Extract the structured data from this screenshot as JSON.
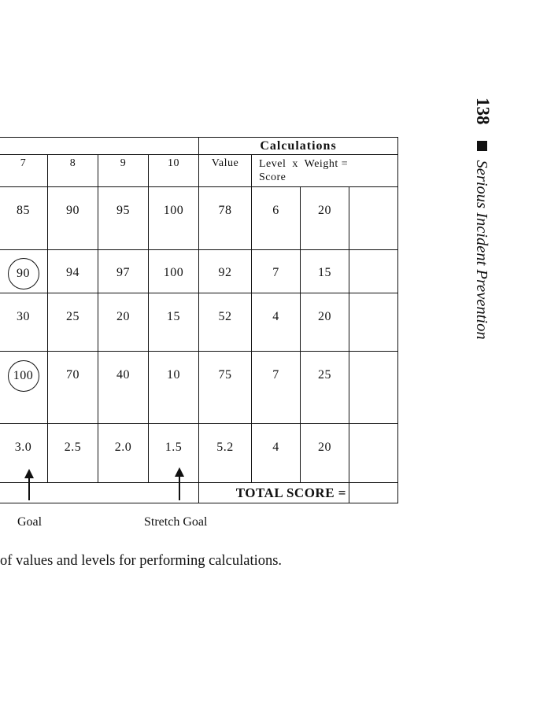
{
  "running_head": {
    "page_number": "138",
    "title": "Serious Incident Prevention"
  },
  "table": {
    "calc_header": "Calculations",
    "columns": [
      "7",
      "8",
      "9",
      "10"
    ],
    "value_header": "Value",
    "formula_line1": "Level  x  Weight =",
    "formula_line2": "Score",
    "rows": [
      {
        "c7": "85",
        "c8": "90",
        "c9": "95",
        "c10": "100",
        "value": "78",
        "level": "6",
        "weight": "20"
      },
      {
        "c7": "90",
        "c8": "94",
        "c9": "97",
        "c10": "100",
        "value": "92",
        "level": "7",
        "weight": "15"
      },
      {
        "c7": "30",
        "c8": "25",
        "c9": "20",
        "c10": "15",
        "value": "52",
        "level": "4",
        "weight": "20"
      },
      {
        "c7": "100",
        "c8": "70",
        "c9": "40",
        "c10": "10",
        "value": "75",
        "level": "7",
        "weight": "25"
      },
      {
        "c7": "3.0",
        "c8": "2.5",
        "c9": "2.0",
        "c10": "1.5",
        "value": "5.2",
        "level": "4",
        "weight": "20"
      }
    ],
    "total_label": "TOTAL SCORE ="
  },
  "annotations": {
    "goal": "Goal",
    "stretch_goal": "Stretch Goal"
  },
  "caption": "of values and levels for performing calculations."
}
